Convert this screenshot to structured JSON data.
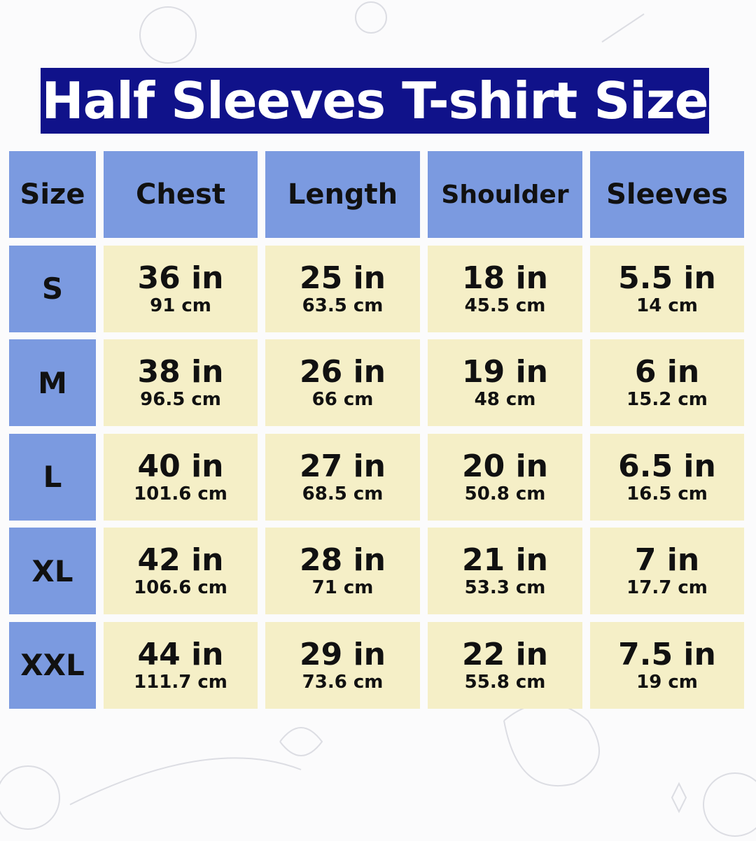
{
  "title": "Half Sleeves T-shirt Size",
  "colors": {
    "title_bg": "#10128a",
    "header_bg": "#7b9ae0",
    "cell_bg": "#f5efc7"
  },
  "table": {
    "headers": [
      "Size",
      "Chest",
      "Length",
      "Shoulder",
      "Sleeves"
    ],
    "rows": [
      {
        "size": "S",
        "values": [
          [
            "36 in",
            "91 cm"
          ],
          [
            "25 in",
            "63.5 cm"
          ],
          [
            "18 in",
            "45.5 cm"
          ],
          [
            "5.5 in",
            "14 cm"
          ]
        ]
      },
      {
        "size": "M",
        "values": [
          [
            "38 in",
            "96.5 cm"
          ],
          [
            "26 in",
            "66 cm"
          ],
          [
            "19 in",
            "48 cm"
          ],
          [
            "6 in",
            "15.2 cm"
          ]
        ]
      },
      {
        "size": "L",
        "values": [
          [
            "40 in",
            "101.6 cm"
          ],
          [
            "27 in",
            "68.5 cm"
          ],
          [
            "20 in",
            "50.8 cm"
          ],
          [
            "6.5 in",
            "16.5 cm"
          ]
        ]
      },
      {
        "size": "XL",
        "values": [
          [
            "42 in",
            "106.6 cm"
          ],
          [
            "28 in",
            "71 cm"
          ],
          [
            "21 in",
            "53.3 cm"
          ],
          [
            "7 in",
            "17.7 cm"
          ]
        ]
      },
      {
        "size": "XXL",
        "values": [
          [
            "44 in",
            "111.7 cm"
          ],
          [
            "29 in",
            "73.6 cm"
          ],
          [
            "22 in",
            "55.8 cm"
          ],
          [
            "7.5 in",
            "19 cm"
          ]
        ]
      }
    ]
  }
}
